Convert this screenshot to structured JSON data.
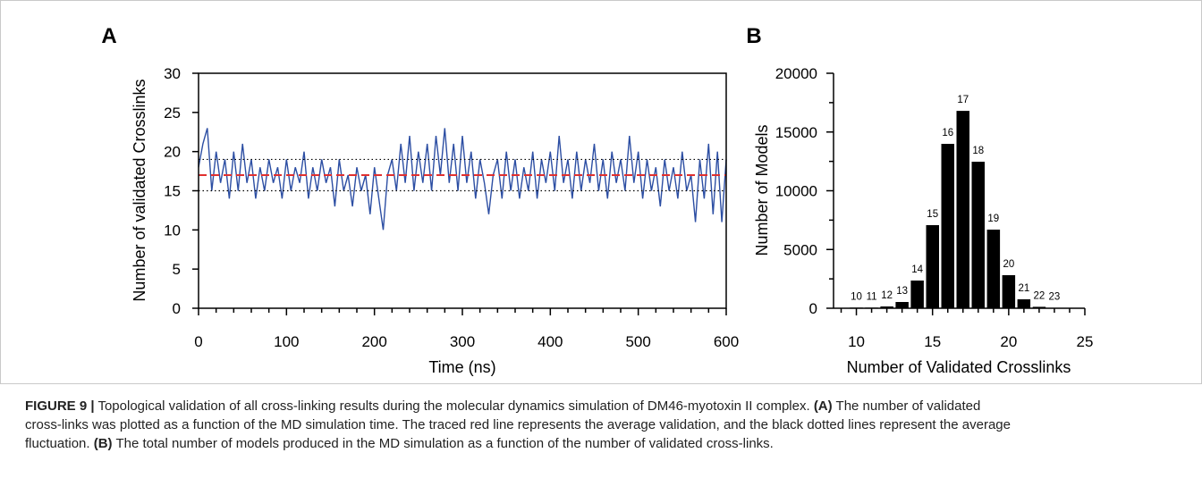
{
  "chart_data": [
    {
      "panel_label": "A",
      "type": "line",
      "title": "",
      "xlabel": "Time (ns)",
      "ylabel": "Number of validated Crosslinks",
      "xlim": [
        0,
        600
      ],
      "ylim": [
        0,
        30
      ],
      "xticks": [
        0,
        100,
        200,
        300,
        400,
        500,
        600
      ],
      "yticks": [
        0,
        5,
        10,
        15,
        20,
        25,
        30
      ],
      "grid": false,
      "series": [
        {
          "color": "#2c4ea3",
          "x": [
            0,
            5,
            10,
            15,
            20,
            25,
            30,
            35,
            40,
            45,
            50,
            55,
            60,
            65,
            70,
            75,
            80,
            85,
            90,
            95,
            100,
            105,
            110,
            115,
            120,
            125,
            130,
            135,
            140,
            145,
            150,
            155,
            160,
            165,
            170,
            175,
            180,
            185,
            190,
            195,
            200,
            205,
            210,
            215,
            220,
            225,
            230,
            235,
            240,
            245,
            250,
            255,
            260,
            265,
            270,
            275,
            280,
            285,
            290,
            295,
            300,
            305,
            310,
            315,
            320,
            325,
            330,
            335,
            340,
            345,
            350,
            355,
            360,
            365,
            370,
            375,
            380,
            385,
            390,
            395,
            400,
            405,
            410,
            415,
            420,
            425,
            430,
            435,
            440,
            445,
            450,
            455,
            460,
            465,
            470,
            475,
            480,
            485,
            490,
            495,
            500,
            505,
            510,
            515,
            520,
            525,
            530,
            535,
            540,
            545,
            550,
            555,
            560,
            565,
            570,
            575,
            580,
            585,
            590,
            595,
            600
          ],
          "values": [
            18,
            21,
            23,
            15,
            20,
            16,
            19,
            14,
            20,
            15,
            21,
            16,
            19,
            14,
            18,
            15,
            19,
            16,
            18,
            14,
            19,
            15,
            18,
            16,
            20,
            14,
            18,
            15,
            19,
            16,
            18,
            13,
            19,
            15,
            17,
            13,
            18,
            15,
            17,
            12,
            18,
            14,
            10,
            17,
            19,
            15,
            21,
            16,
            22,
            15,
            20,
            16,
            21,
            15,
            22,
            17,
            23,
            16,
            21,
            15,
            22,
            16,
            20,
            14,
            19,
            16,
            12,
            17,
            19,
            14,
            20,
            15,
            19,
            14,
            18,
            15,
            20,
            14,
            19,
            16,
            20,
            15,
            22,
            16,
            19,
            14,
            20,
            15,
            19,
            16,
            21,
            15,
            19,
            14,
            20,
            16,
            19,
            15,
            22,
            16,
            20,
            14,
            19,
            15,
            18,
            13,
            19,
            15,
            18,
            14,
            20,
            15,
            17,
            11,
            19,
            14,
            21,
            12,
            20,
            11,
            19
          ]
        }
      ],
      "reference_lines": [
        {
          "y": 17,
          "color": "#e0302f",
          "line": "dashed"
        },
        {
          "y": 15,
          "color": "#000000",
          "line": "dotted"
        },
        {
          "y": 19,
          "color": "#000000",
          "line": "dotted"
        }
      ]
    },
    {
      "panel_label": "B",
      "type": "bar",
      "title": "",
      "xlabel": "Number of Validated Crosslinks",
      "ylabel": "Number of Models",
      "categories": [
        10,
        11,
        12,
        13,
        14,
        15,
        16,
        17,
        18,
        19,
        20,
        21,
        22,
        23
      ],
      "values": [
        50,
        50,
        150,
        530,
        2360,
        7070,
        13990,
        16800,
        12470,
        6690,
        2810,
        760,
        120,
        30
      ],
      "xlim": [
        8.5,
        25
      ],
      "ylim": [
        0,
        20000
      ],
      "xticks": [
        10,
        15,
        20,
        25
      ],
      "yticks": [
        0,
        5000,
        10000,
        15000,
        20000
      ],
      "grid": false,
      "bar_color": "#000000"
    }
  ],
  "caption": {
    "figure_label": "FIGURE 9 |",
    "intro": "Topological validation of all cross-linking results during the molecular dynamics simulation of DM46-myotoxin II complex.",
    "ref_a": "(A)",
    "text_a_1": "The number of validated",
    "text_a_2": "cross-links was plotted as a function of the MD simulation time. The traced red line represents the average validation, and the black dotted lines represent the average",
    "text_a_3": "fluctuation.",
    "ref_b": "(B)",
    "text_b": "The total number of models produced in the MD simulation as a function of the number of validated cross-links."
  }
}
